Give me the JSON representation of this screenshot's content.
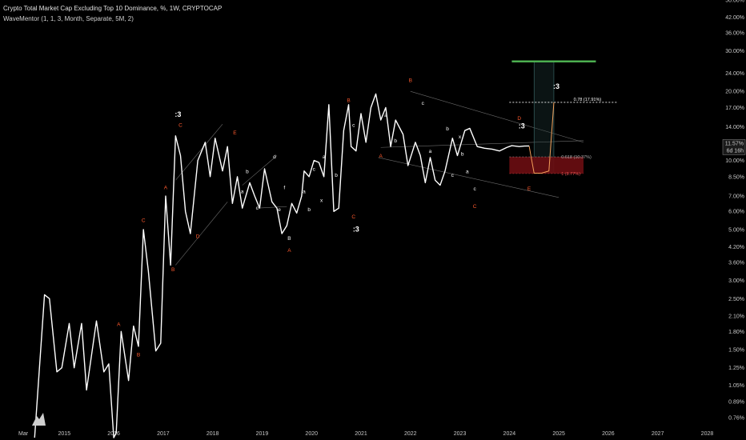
{
  "header": {
    "title": "Crypto Total Market Cap Excluding Top 10 Dominance, %, 1W, CRYPTOCAP",
    "indicator": "WaveMentor (1, 1, 3, Month, Separate, 5M, 2)"
  },
  "colors": {
    "background": "#000000",
    "price": "#ffffff",
    "wave_major": "#ff5a2e",
    "wave_minor": "#ffffff",
    "target_zone_green": "#4caf50",
    "box_red": "#6b0d12",
    "projection": "#f5a05a"
  },
  "chart_data": {
    "type": "line",
    "title": "Crypto Total Market Cap Excluding Top 10 Dominance, %, 1W, CRYPTOCAP",
    "y_scale": "log",
    "ylim": [
      0.7,
      50
    ],
    "y_ticks": [
      "0.76%",
      "0.89%",
      "1.05%",
      "1.25%",
      "1.50%",
      "1.80%",
      "2.10%",
      "2.50%",
      "3.00%",
      "3.60%",
      "4.20%",
      "5.00%",
      "6.00%",
      "7.00%",
      "8.50%",
      "10.00%",
      "12.00%",
      "14.00%",
      "17.00%",
      "20.00%",
      "24.00%",
      "30.00%",
      "36.00%",
      "42.00%",
      "50.00%"
    ],
    "x_ticks": [
      "Mar",
      "2015",
      "2016",
      "2017",
      "2018",
      "2019",
      "2020",
      "2021",
      "2022",
      "2023",
      "2024",
      "2025",
      "2026",
      "2027",
      "2028"
    ],
    "x_tick_values": [
      2014.17,
      2015,
      2016,
      2017,
      2018,
      2019,
      2020,
      2021,
      2022,
      2023,
      2024,
      2025,
      2026,
      2027,
      2028
    ],
    "x_range": [
      2013.7,
      2028.3
    ],
    "current_price_label": "11.57%",
    "countdown_label": "6d 16h",
    "series": [
      {
        "x": [
          2014.4,
          2014.6,
          2014.7,
          2014.85,
          2014.95,
          2015.1,
          2015.2,
          2015.35,
          2015.45,
          2015.65,
          2015.8,
          2015.9,
          2016.0,
          2016.05,
          2016.15,
          2016.3,
          2016.4,
          2016.5,
          2016.6,
          2016.7,
          2016.85,
          2016.95,
          2017.05,
          2017.15,
          2017.25,
          2017.35,
          2017.45,
          2017.55,
          2017.7,
          2017.85,
          2017.95,
          2018.05,
          2018.2,
          2018.3,
          2018.4,
          2018.5,
          2018.6,
          2018.75,
          2018.85,
          2018.95,
          2019.05,
          2019.2,
          2019.3,
          2019.4,
          2019.5,
          2019.6,
          2019.7,
          2019.8,
          2019.85,
          2019.95,
          2020.05,
          2020.15,
          2020.25,
          2020.35,
          2020.45,
          2020.55,
          2020.65,
          2020.75,
          2020.8,
          2020.9,
          2021.0,
          2021.1,
          2021.2,
          2021.3,
          2021.4,
          2021.5,
          2021.6,
          2021.7,
          2021.85,
          2021.95,
          2022.1,
          2022.2,
          2022.3,
          2022.4,
          2022.5,
          2022.6,
          2022.7,
          2022.85,
          2022.95,
          2023.1,
          2023.2,
          2023.35,
          2023.5,
          2023.65,
          2023.8,
          2023.95,
          2024.05,
          2024.2,
          2024.3,
          2024.4
        ],
        "y": [
          0.62,
          2.6,
          2.5,
          1.2,
          1.25,
          1.95,
          1.25,
          1.95,
          1.0,
          2.0,
          1.2,
          1.3,
          0.62,
          0.65,
          1.8,
          1.1,
          1.9,
          1.55,
          5.0,
          3.3,
          1.48,
          1.6,
          7.0,
          3.5,
          12.8,
          10.5,
          6.0,
          4.8,
          10.0,
          12.0,
          8.5,
          12.5,
          9.0,
          11.5,
          6.5,
          8.5,
          6.2,
          8.0,
          7.0,
          6.2,
          9.2,
          6.6,
          6.2,
          4.8,
          5.2,
          6.5,
          5.9,
          7.0,
          9.0,
          8.5,
          10.0,
          9.8,
          8.5,
          17.5,
          6.0,
          6.2,
          13.5,
          17.5,
          11.5,
          11.0,
          16.0,
          12.0,
          17.0,
          19.5,
          15.0,
          17.0,
          11.5,
          15.0,
          13.0,
          9.5,
          12.0,
          10.5,
          8.0,
          10.3,
          8.2,
          7.8,
          9.0,
          12.5,
          10.5,
          13.5,
          13.8,
          11.5,
          11.3,
          11.2,
          11.0,
          11.4,
          11.6,
          11.5,
          11.56,
          11.57
        ]
      }
    ]
  },
  "annotations": {
    "fib_078": "0.78 (17.91%)",
    "fib_0618": "0.618 (10.37%)",
    "fib_1": "1 (8.77%)",
    "wave_labels": [
      {
        "t": "A",
        "x": 2016.1,
        "y": 1.9,
        "c": "major"
      },
      {
        "t": "B",
        "x": 2016.5,
        "y": 1.4,
        "c": "major"
      },
      {
        "t": "C",
        "x": 2016.6,
        "y": 5.4,
        "c": "major"
      },
      {
        "t": "A",
        "x": 2017.05,
        "y": 7.5,
        "c": "major"
      },
      {
        "t": "B",
        "x": 2017.2,
        "y": 3.3,
        "c": "major"
      },
      {
        "t": "C",
        "x": 2017.35,
        "y": 14.0,
        "c": "major"
      },
      {
        "t": "D",
        "x": 2017.7,
        "y": 4.6,
        "c": "major"
      },
      {
        "t": "E",
        "x": 2018.45,
        "y": 13.0,
        "c": "major"
      },
      {
        "t": "A",
        "x": 2019.55,
        "y": 4.0,
        "c": "major"
      },
      {
        "t": "B",
        "x": 2020.75,
        "y": 18.0,
        "c": "major"
      },
      {
        "t": "C",
        "x": 2020.85,
        "y": 5.6,
        "c": "major"
      },
      {
        "t": "A",
        "x": 2021.4,
        "y": 10.3,
        "c": "major"
      },
      {
        "t": "B",
        "x": 2022.0,
        "y": 22.0,
        "c": "major"
      },
      {
        "t": "C",
        "x": 2023.3,
        "y": 6.2,
        "c": "major"
      },
      {
        "t": "D",
        "x": 2024.2,
        "y": 15.0,
        "c": "major"
      },
      {
        "t": "E",
        "x": 2024.4,
        "y": 7.4,
        "c": "major"
      },
      {
        "t": "a",
        "x": 2018.6,
        "y": 7.2,
        "c": "minor"
      },
      {
        "t": "b",
        "x": 2018.7,
        "y": 8.8,
        "c": "minor"
      },
      {
        "t": "c",
        "x": 2018.9,
        "y": 6.1,
        "c": "minor"
      },
      {
        "t": "d",
        "x": 2019.25,
        "y": 10.2,
        "c": "minor"
      },
      {
        "t": "e",
        "x": 2019.35,
        "y": 6.0,
        "c": "minor"
      },
      {
        "t": "f",
        "x": 2019.45,
        "y": 7.5,
        "c": "minor"
      },
      {
        "t": "B",
        "x": 2019.55,
        "y": 4.5,
        "c": "minor"
      },
      {
        "t": "a",
        "x": 2019.85,
        "y": 7.2,
        "c": "minor"
      },
      {
        "t": "b",
        "x": 2019.95,
        "y": 6.0,
        "c": "minor"
      },
      {
        "t": "c",
        "x": 2020.05,
        "y": 9.0,
        "c": "minor"
      },
      {
        "t": "a",
        "x": 2020.25,
        "y": 10.2,
        "c": "minor"
      },
      {
        "t": "x",
        "x": 2020.2,
        "y": 6.6,
        "c": "minor"
      },
      {
        "t": "b",
        "x": 2020.5,
        "y": 8.5,
        "c": "minor"
      },
      {
        "t": "c",
        "x": 2020.85,
        "y": 14.0,
        "c": "minor"
      },
      {
        "t": "a",
        "x": 2021.5,
        "y": 15.5,
        "c": "minor"
      },
      {
        "t": "b",
        "x": 2021.7,
        "y": 12.0,
        "c": "minor"
      },
      {
        "t": "c",
        "x": 2022.25,
        "y": 17.5,
        "c": "minor"
      },
      {
        "t": "a",
        "x": 2022.4,
        "y": 10.8,
        "c": "minor"
      },
      {
        "t": "b",
        "x": 2022.75,
        "y": 13.5,
        "c": "minor"
      },
      {
        "t": "c",
        "x": 2022.85,
        "y": 8.5,
        "c": "minor"
      },
      {
        "t": "x",
        "x": 2023.0,
        "y": 12.5,
        "c": "minor"
      },
      {
        "t": "b",
        "x": 2023.05,
        "y": 10.5,
        "c": "minor"
      },
      {
        "t": "a",
        "x": 2023.15,
        "y": 8.8,
        "c": "minor"
      },
      {
        "t": "c",
        "x": 2023.3,
        "y": 7.4,
        "c": "minor"
      }
    ],
    "degree_labels": [
      {
        "t": ":3",
        "x": 2017.3,
        "y": 15.5
      },
      {
        "t": ":3",
        "x": 2020.9,
        "y": 4.9
      },
      {
        "t": ":3",
        "x": 2024.25,
        "y": 13.8
      },
      {
        "t": ":3",
        "x": 2024.95,
        "y": 20.5
      }
    ]
  }
}
